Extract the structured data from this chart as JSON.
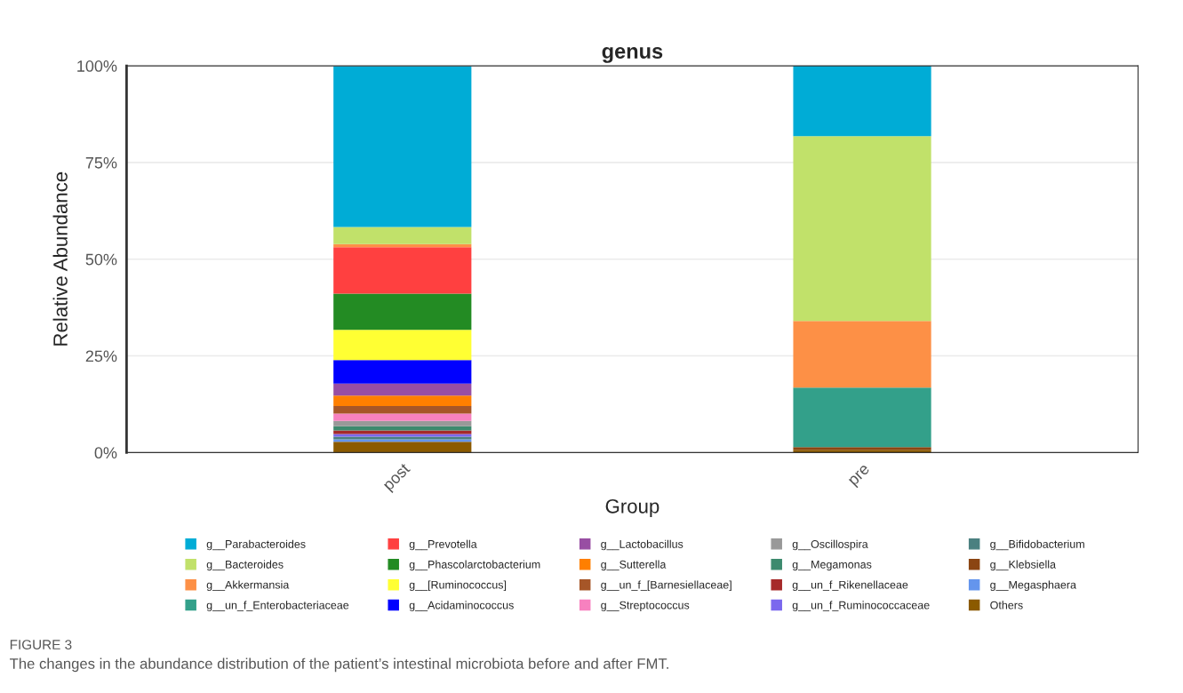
{
  "chart_data": {
    "type": "bar",
    "stacked": true,
    "title": "genus",
    "xlabel": "Group",
    "ylabel": "Relative Abundance",
    "categories": [
      "post",
      "pre"
    ],
    "ylim": [
      0,
      100
    ],
    "yticks": [
      {
        "value": 0,
        "label": "0%"
      },
      {
        "value": 25,
        "label": "25%"
      },
      {
        "value": 50,
        "label": "50%"
      },
      {
        "value": 75,
        "label": "75%"
      },
      {
        "value": 100,
        "label": "100%"
      }
    ],
    "grid": "y",
    "legend": "bottom",
    "series": [
      {
        "name": "Others",
        "color": "#8b5a00",
        "values": [
          2.8,
          0.7
        ]
      },
      {
        "name": "g__Megasphaera",
        "color": "#6495ed",
        "values": [
          0.6,
          0
        ]
      },
      {
        "name": "g__Klebsiella",
        "color": "#8b4513",
        "values": [
          0,
          0.7
        ]
      },
      {
        "name": "g__Bifidobacterium",
        "color": "#4b8080",
        "values": [
          0.7,
          0
        ]
      },
      {
        "name": "g__un_f_Ruminococcaceae",
        "color": "#7b68ee",
        "values": [
          0.7,
          0
        ]
      },
      {
        "name": "g__un_f_Rikenellaceae",
        "color": "#a62a2a",
        "values": [
          0.9,
          0
        ]
      },
      {
        "name": "g__Megamonas",
        "color": "#3d8a6e",
        "values": [
          1.1,
          0
        ]
      },
      {
        "name": "g__Oscillospira",
        "color": "#999999",
        "values": [
          1.4,
          0
        ]
      },
      {
        "name": "g__Streptococcus",
        "color": "#f781bf",
        "values": [
          1.9,
          0
        ]
      },
      {
        "name": "g__un_f_[Barnesiellaceae]",
        "color": "#a65628",
        "values": [
          1.9,
          0
        ]
      },
      {
        "name": "g__Sutterella",
        "color": "#ff7f00",
        "values": [
          2.7,
          0
        ]
      },
      {
        "name": "g__Lactobacillus",
        "color": "#984ea3",
        "values": [
          3.1,
          0
        ]
      },
      {
        "name": "g__Acidaminococcus",
        "color": "#0000ff",
        "values": [
          6.1,
          0
        ]
      },
      {
        "name": "g__[Ruminococcus]",
        "color": "#ffff33",
        "values": [
          7.8,
          0
        ]
      },
      {
        "name": "g__Phascolarctobacterium",
        "color": "#238b23",
        "values": [
          9.4,
          0
        ]
      },
      {
        "name": "g__Prevotella",
        "color": "#ff4040",
        "values": [
          12.0,
          0
        ]
      },
      {
        "name": "g__un_f_Enterobacteriaceae",
        "color": "#33a08a",
        "values": [
          0,
          15.4
        ]
      },
      {
        "name": "g__Akkermansia",
        "color": "#fd9046",
        "values": [
          0.8,
          17.2
        ]
      },
      {
        "name": "g__Bacteroides",
        "color": "#c1e16a",
        "values": [
          4.4,
          47.8
        ]
      },
      {
        "name": "g__Parabacteroides",
        "color": "#00acd6",
        "values": [
          41.6,
          18.2
        ]
      }
    ],
    "annotations": [
      "FIGURE 3",
      "The changes in the abundance distribution of the patient’s intestinal microbiota before and after FMT."
    ]
  }
}
